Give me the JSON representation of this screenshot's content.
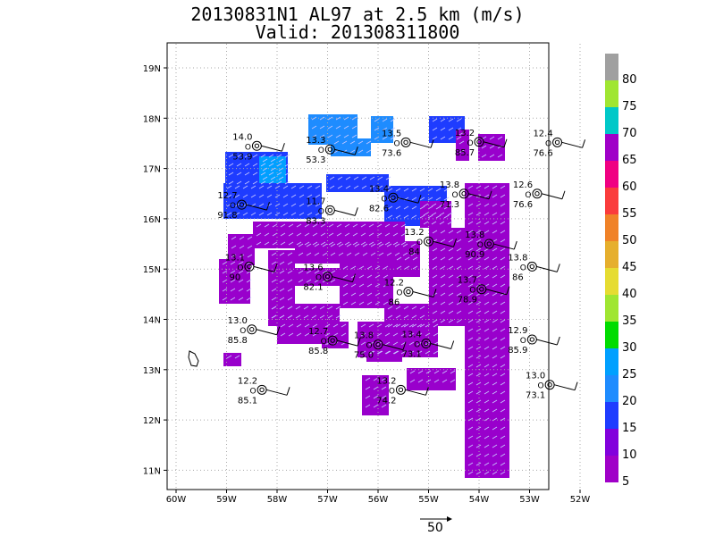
{
  "title": {
    "line1": "20130831N1 AL97 at 2.5 km (m/s)",
    "line2": "Valid: 201308311800"
  },
  "axes": {
    "lon_ticks": [
      "60W",
      "59W",
      "58W",
      "57W",
      "56W",
      "55W",
      "54W",
      "53W",
      "52W"
    ],
    "lat_ticks": [
      "19N",
      "18N",
      "17N",
      "16N",
      "15N",
      "14N",
      "13N",
      "12N",
      "11N"
    ]
  },
  "colorbar": {
    "labels": [
      "80",
      "75",
      "70",
      "65",
      "60",
      "55",
      "50",
      "45",
      "40",
      "35",
      "30",
      "25",
      "20",
      "15",
      "10",
      "5"
    ],
    "colors": [
      "#a0a0a0",
      "#a0e632",
      "#00c8c8",
      "#a000c8",
      "#f00082",
      "#fa3c3c",
      "#f08228",
      "#e6af2d",
      "#e6dc32",
      "#a0e632",
      "#00dc00",
      "#00a0ff",
      "#1e8cff",
      "#1e3cff",
      "#8200dc",
      "#a000c8"
    ]
  },
  "stations": [
    {
      "id": "s1",
      "top": "14.0",
      "bottom": "53.9",
      "lon": -58.4,
      "lat": 17.45
    },
    {
      "id": "s2",
      "top": "13.3",
      "bottom": "53.3",
      "lon": -56.95,
      "lat": 17.38
    },
    {
      "id": "s3",
      "top": "13.5",
      "bottom": "73.6",
      "lon": -55.45,
      "lat": 17.52
    },
    {
      "id": "s4",
      "top": "13.2",
      "bottom": "85.7",
      "lon": -54.0,
      "lat": 17.53
    },
    {
      "id": "s5",
      "top": "12.4",
      "bottom": "76.6",
      "lon": -52.45,
      "lat": 17.52
    },
    {
      "id": "s6",
      "top": "12.7",
      "bottom": "91.8",
      "lon": -58.7,
      "lat": 16.28
    },
    {
      "id": "s7",
      "top": "11.7",
      "bottom": "83.3",
      "lon": -56.95,
      "lat": 16.17
    },
    {
      "id": "s8",
      "top": "13.4",
      "bottom": "82.6",
      "lon": -55.7,
      "lat": 16.42
    },
    {
      "id": "s9",
      "top": "13.8",
      "bottom": "71.3",
      "lon": -54.3,
      "lat": 16.5
    },
    {
      "id": "s10",
      "top": "12.6",
      "bottom": "76.6",
      "lon": -52.85,
      "lat": 16.5
    },
    {
      "id": "s11",
      "top": "13.2",
      "bottom": "84",
      "lon": -55.0,
      "lat": 15.55
    },
    {
      "id": "s12",
      "top": "13.8",
      "bottom": "90.9",
      "lon": -53.8,
      "lat": 15.5
    },
    {
      "id": "s13",
      "top": "13.1",
      "bottom": "90",
      "lon": -58.55,
      "lat": 15.05
    },
    {
      "id": "s14",
      "top": "13.6",
      "bottom": "82.1",
      "lon": -57.0,
      "lat": 14.85
    },
    {
      "id": "s15",
      "top": "13.8",
      "bottom": "86",
      "lon": -52.95,
      "lat": 15.05
    },
    {
      "id": "s16",
      "top": "12.2",
      "bottom": "86",
      "lon": -55.4,
      "lat": 14.55
    },
    {
      "id": "s17",
      "top": "13.7",
      "bottom": "78.9",
      "lon": -53.95,
      "lat": 14.6
    },
    {
      "id": "s18",
      "top": "13.0",
      "bottom": "85.8",
      "lon": -58.5,
      "lat": 13.8
    },
    {
      "id": "s19",
      "top": "12.7",
      "bottom": "85.8",
      "lon": -56.9,
      "lat": 13.58
    },
    {
      "id": "s20",
      "top": "13.8",
      "bottom": "75.0",
      "lon": -56.0,
      "lat": 13.5
    },
    {
      "id": "s21",
      "top": "13.4",
      "bottom": "73.1",
      "lon": -55.05,
      "lat": 13.52
    },
    {
      "id": "s22",
      "top": "12.9",
      "bottom": "85.9",
      "lon": -52.95,
      "lat": 13.6
    },
    {
      "id": "s23",
      "top": "12.2",
      "bottom": "85.1",
      "lon": -58.3,
      "lat": 12.6
    },
    {
      "id": "s24",
      "top": "13.2",
      "bottom": "74.2",
      "lon": -55.55,
      "lat": 12.6
    },
    {
      "id": "s25",
      "top": "13.0",
      "bottom": "73.1",
      "lon": -52.6,
      "lat": 12.7
    }
  ],
  "reference_vector": {
    "label": "50"
  }
}
